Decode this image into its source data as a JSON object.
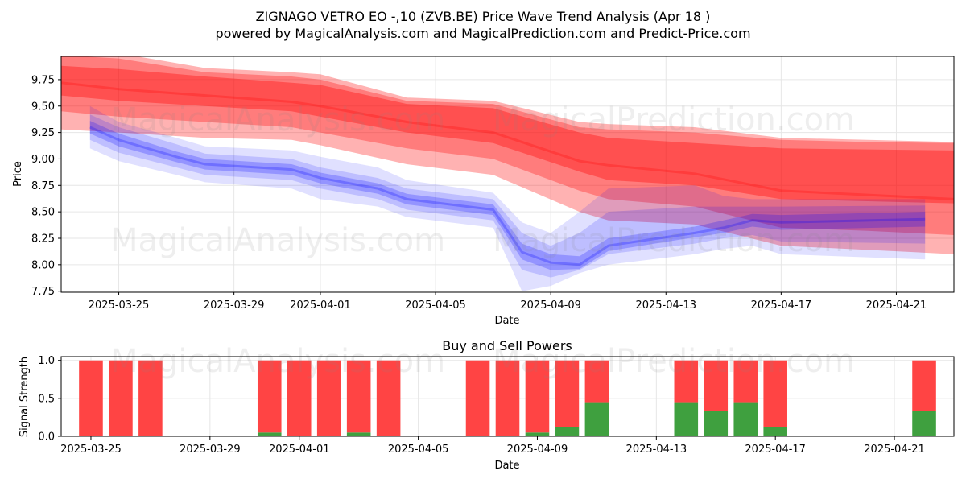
{
  "title": "ZIGNAGO VETRO  EO -,10 (ZVB.BE) Price Wave Trend Analysis (Apr 18 )",
  "subtitle": "powered by MagicalAnalysis.com and MagicalPrediction.com and Predict-Price.com",
  "watermarks": [
    "MagicalAnalysis.com",
    "MagicalPrediction.com"
  ],
  "colors": {
    "red": "#ff0000",
    "blue": "#0000ff",
    "green": "#3fa03f",
    "sell": "#ff4444",
    "grid": "#e6e6e6"
  },
  "chart_data": [
    {
      "type": "area",
      "xlabel": "Date",
      "ylabel": "Price",
      "x_tick_labels": [
        "2025-03-25",
        "2025-03-29",
        "2025-04-01",
        "2025-04-05",
        "2025-04-09",
        "2025-04-13",
        "2025-04-17",
        "2025-04-21"
      ],
      "x_tick_dates": [
        "2025-03-25",
        "2025-03-29",
        "2025-04-01",
        "2025-04-05",
        "2025-04-09",
        "2025-04-13",
        "2025-04-17",
        "2025-04-21"
      ],
      "y_tick_labels": [
        "7.75",
        "8.00",
        "8.25",
        "8.50",
        "8.75",
        "9.00",
        "9.25",
        "9.50",
        "9.75"
      ],
      "y_ticks": [
        7.75,
        8.0,
        8.25,
        8.5,
        8.75,
        9.0,
        9.25,
        9.5,
        9.75
      ],
      "xlim": [
        "2025-03-23",
        "2025-04-23"
      ],
      "ylim": [
        7.74,
        9.97
      ],
      "grid": true,
      "series": [
        {
          "color": "red",
          "x": [
            "2025-03-23",
            "2025-03-25",
            "2025-03-28",
            "2025-03-31",
            "2025-04-01",
            "2025-04-04",
            "2025-04-07",
            "2025-04-10",
            "2025-04-11",
            "2025-04-14",
            "2025-04-17",
            "2025-04-20",
            "2025-04-23"
          ],
          "center": [
            9.72,
            9.66,
            9.6,
            9.54,
            9.5,
            9.35,
            9.25,
            8.98,
            8.94,
            8.86,
            8.7,
            8.66,
            8.62
          ],
          "bands": [
            {
              "opacity": 0.3,
              "lower": [
                9.28,
                9.25,
                9.2,
                9.18,
                9.13,
                8.95,
                8.85,
                8.5,
                8.42,
                8.38,
                8.18,
                8.14,
                8.1
              ],
              "upper": [
                10.05,
                10.0,
                9.86,
                9.82,
                9.8,
                9.58,
                9.55,
                9.35,
                9.33,
                9.3,
                9.2,
                9.18,
                9.16
              ]
            },
            {
              "opacity": 0.3,
              "lower": [
                9.45,
                9.4,
                9.35,
                9.3,
                9.25,
                9.1,
                9.0,
                8.7,
                8.62,
                8.55,
                8.35,
                8.32,
                8.28
              ],
              "upper": [
                9.98,
                9.95,
                9.82,
                9.78,
                9.75,
                9.55,
                9.52,
                9.3,
                9.28,
                9.25,
                9.18,
                9.16,
                9.15
              ]
            },
            {
              "opacity": 0.35,
              "lower": [
                9.6,
                9.55,
                9.5,
                9.45,
                9.4,
                9.25,
                9.15,
                8.88,
                8.8,
                8.75,
                8.62,
                8.6,
                8.58
              ],
              "upper": [
                9.88,
                9.85,
                9.78,
                9.72,
                9.7,
                9.52,
                9.48,
                9.25,
                9.2,
                9.15,
                9.1,
                9.09,
                9.08
              ]
            }
          ]
        },
        {
          "color": "blue",
          "x": [
            "2025-03-24",
            "2025-03-25",
            "2025-03-27",
            "2025-03-28",
            "2025-03-31",
            "2025-04-01",
            "2025-04-03",
            "2025-04-04",
            "2025-04-07",
            "2025-04-08",
            "2025-04-09",
            "2025-04-10",
            "2025-04-11",
            "2025-04-14",
            "2025-04-15",
            "2025-04-16",
            "2025-04-17",
            "2025-04-22"
          ],
          "center": [
            9.3,
            9.18,
            9.02,
            8.95,
            8.9,
            8.82,
            8.72,
            8.62,
            8.52,
            8.12,
            8.02,
            8.0,
            8.18,
            8.3,
            8.35,
            8.42,
            8.4,
            8.43
          ],
          "bands": [
            {
              "opacity": 0.12,
              "lower": [
                9.1,
                8.98,
                8.85,
                8.78,
                8.72,
                8.62,
                8.55,
                8.45,
                8.35,
                7.75,
                7.8,
                7.92,
                8.0,
                8.1,
                8.15,
                8.18,
                8.1,
                8.05
              ],
              "upper": [
                9.5,
                9.35,
                9.2,
                9.12,
                9.08,
                9.02,
                8.92,
                8.8,
                8.68,
                8.4,
                8.3,
                8.5,
                8.72,
                8.75,
                8.65,
                8.62,
                8.62,
                8.62
              ]
            },
            {
              "opacity": 0.15,
              "lower": [
                9.18,
                9.06,
                8.92,
                8.85,
                8.8,
                8.72,
                8.62,
                8.52,
                8.42,
                7.95,
                7.88,
                7.95,
                8.1,
                8.2,
                8.25,
                8.28,
                8.22,
                8.2
              ],
              "upper": [
                9.42,
                9.3,
                9.14,
                9.05,
                9.0,
                8.92,
                8.82,
                8.72,
                8.62,
                8.3,
                8.18,
                8.3,
                8.5,
                8.55,
                8.55,
                8.55,
                8.55,
                8.56
              ]
            },
            {
              "opacity": 0.22,
              "lower": [
                9.24,
                9.12,
                8.97,
                8.9,
                8.85,
                8.77,
                8.67,
                8.57,
                8.47,
                8.05,
                7.95,
                7.96,
                8.13,
                8.26,
                8.3,
                8.36,
                8.33,
                8.36
              ],
              "upper": [
                9.36,
                9.24,
                9.07,
                9.0,
                8.95,
                8.87,
                8.77,
                8.67,
                8.57,
                8.2,
                8.1,
                8.08,
                8.25,
                8.36,
                8.42,
                8.48,
                8.47,
                8.5
              ]
            }
          ]
        }
      ]
    },
    {
      "type": "bar",
      "title": "Buy and Sell Powers",
      "xlabel": "Date",
      "ylabel": "Signal Strength",
      "x_tick_labels": [
        "2025-03-25",
        "2025-03-29",
        "2025-04-01",
        "2025-04-05",
        "2025-04-09",
        "2025-04-13",
        "2025-04-17",
        "2025-04-21"
      ],
      "x_tick_dates": [
        "2025-03-25",
        "2025-03-29",
        "2025-04-01",
        "2025-04-05",
        "2025-04-09",
        "2025-04-13",
        "2025-04-17",
        "2025-04-21"
      ],
      "y_tick_labels": [
        "0.0",
        "0.5",
        "1.0"
      ],
      "y_ticks": [
        0.0,
        0.5,
        1.0
      ],
      "xlim": [
        "2025-03-24",
        "2025-04-23"
      ],
      "ylim": [
        0,
        1.05
      ],
      "grid": true,
      "categories": [
        "2025-03-25",
        "2025-03-26",
        "2025-03-27",
        "2025-03-31",
        "2025-04-01",
        "2025-04-02",
        "2025-04-03",
        "2025-04-04",
        "2025-04-07",
        "2025-04-08",
        "2025-04-09",
        "2025-04-10",
        "2025-04-11",
        "2025-04-14",
        "2025-04-15",
        "2025-04-16",
        "2025-04-17",
        "2025-04-22"
      ],
      "series": [
        {
          "name": "Buy",
          "color": "green",
          "values": [
            0.0,
            0.0,
            0.0,
            0.05,
            0.0,
            0.0,
            0.05,
            0.0,
            0.0,
            0.0,
            0.05,
            0.12,
            0.45,
            0.45,
            0.33,
            0.45,
            0.12,
            0.33
          ]
        },
        {
          "name": "Sell",
          "color": "sell",
          "values": [
            1.0,
            1.0,
            1.0,
            0.95,
            1.0,
            1.0,
            0.95,
            1.0,
            1.0,
            1.0,
            0.95,
            0.88,
            0.55,
            0.55,
            0.67,
            0.55,
            0.88,
            0.67
          ]
        }
      ]
    }
  ]
}
